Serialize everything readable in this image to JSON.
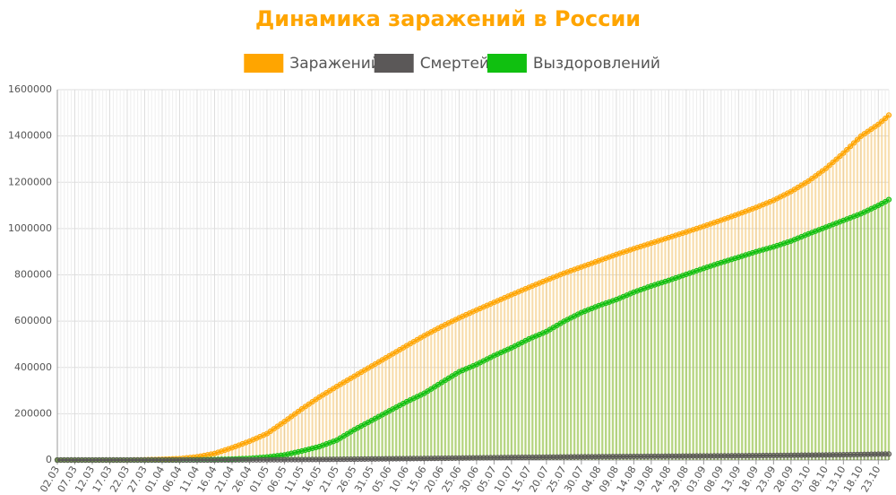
{
  "chart_data": {
    "type": "line",
    "title": "Динамика заражений в России",
    "categories": [
      "02.03",
      null,
      null,
      null,
      null,
      "07.03",
      null,
      null,
      null,
      null,
      "12.03",
      null,
      null,
      null,
      null,
      "17.03",
      null,
      null,
      null,
      null,
      "22.03",
      null,
      null,
      null,
      null,
      "27.03",
      null,
      null,
      null,
      null,
      "01.04",
      null,
      null,
      null,
      null,
      "06.04",
      null,
      null,
      null,
      null,
      "11.04",
      null,
      null,
      null,
      null,
      "16.04",
      null,
      null,
      null,
      null,
      "21.04",
      null,
      null,
      null,
      null,
      "26.04",
      null,
      null,
      null,
      null,
      "01.05",
      null,
      null,
      null,
      null,
      "06.05",
      null,
      null,
      null,
      null,
      "11.05",
      null,
      null,
      null,
      null,
      "16.05",
      null,
      null,
      null,
      null,
      "21.05",
      null,
      null,
      null,
      null,
      "26.05",
      null,
      null,
      null,
      null,
      "31.05",
      null,
      null,
      null,
      null,
      "05.06",
      null,
      null,
      null,
      null,
      "10.06",
      null,
      null,
      null,
      null,
      "15.06",
      null,
      null,
      null,
      null,
      "20.06",
      null,
      null,
      null,
      null,
      "25.06",
      null,
      null,
      null,
      null,
      "30.06",
      null,
      null,
      null,
      null,
      "05.07",
      null,
      null,
      null,
      null,
      "10.07",
      null,
      null,
      null,
      null,
      "15.07",
      null,
      null,
      null,
      null,
      "20.07",
      null,
      null,
      null,
      null,
      "25.07",
      null,
      null,
      null,
      null,
      "30.07",
      null,
      null,
      null,
      null,
      "04.08",
      null,
      null,
      null,
      null,
      "09.08",
      null,
      null,
      null,
      null,
      "14.08",
      null,
      null,
      null,
      null,
      "19.08",
      null,
      null,
      null,
      null,
      "24.08",
      null,
      null,
      null,
      null,
      "29.08",
      null,
      null,
      null,
      null,
      "03.09",
      null,
      null,
      null,
      null,
      "08.09",
      null,
      null,
      null,
      null,
      "13.09",
      null,
      null,
      null,
      null,
      "18.09",
      null,
      null,
      null,
      null,
      "23.09",
      null,
      null,
      null,
      null,
      "28.09",
      null,
      null,
      null,
      null,
      "03.10",
      null,
      null,
      null,
      null,
      "08.10",
      null,
      null,
      null,
      null,
      "13.10",
      null,
      null,
      null,
      null,
      "18.10",
      null,
      null,
      null,
      null,
      "23.10",
      null,
      null,
      null
    ],
    "series": [
      {
        "name": "Заражений",
        "color": "#ffa500",
        "values": [
          0,
          0,
          0,
          0,
          0,
          0,
          0,
          0,
          0,
          0,
          0,
          0,
          0,
          0,
          0,
          0,
          0,
          0,
          0,
          0,
          0,
          200,
          400,
          600,
          800,
          1000,
          1400,
          1800,
          2200,
          2600,
          3000,
          3600,
          4200,
          4800,
          5400,
          6000,
          7600,
          9200,
          10800,
          12400,
          14000,
          16800,
          19600,
          22400,
          25200,
          28000,
          33000,
          38000,
          43000,
          48000,
          53000,
          58600,
          64200,
          69800,
          75400,
          81000,
          87600,
          94200,
          100800,
          107400,
          114000,
          124400,
          134800,
          145200,
          155600,
          166000,
          177000,
          188000,
          199000,
          210000,
          221000,
          231200,
          241400,
          251600,
          261800,
          272000,
          281200,
          290400,
          299600,
          308800,
          318000,
          326800,
          335600,
          344400,
          353200,
          362000,
          370800,
          379600,
          388400,
          397200,
          406000,
          414800,
          423600,
          432400,
          441200,
          450000,
          458800,
          467600,
          476400,
          485200,
          494000,
          502600,
          511200,
          519800,
          528400,
          537000,
          545000,
          553000,
          561000,
          569000,
          577000,
          584400,
          591800,
          599200,
          606600,
          614000,
          620800,
          627600,
          634400,
          641200,
          648000,
          654600,
          661200,
          667800,
          674400,
          681000,
          687600,
          694200,
          700800,
          707400,
          714000,
          720400,
          726800,
          733200,
          739600,
          746000,
          752200,
          758400,
          764600,
          770800,
          777000,
          783000,
          789000,
          795000,
          801000,
          807000,
          812400,
          817800,
          823200,
          828600,
          834000,
          839400,
          844800,
          850200,
          855600,
          861000,
          866400,
          871800,
          877200,
          882600,
          888000,
          893000,
          898000,
          903000,
          908000,
          913000,
          917800,
          922600,
          927400,
          932200,
          937000,
          941800,
          946600,
          951400,
          956200,
          961000,
          965800,
          970600,
          975400,
          980200,
          985000,
          990000,
          995000,
          1000000,
          1005000,
          1010000,
          1015200,
          1020400,
          1025600,
          1030800,
          1036000,
          1041400,
          1046800,
          1052200,
          1057600,
          1063000,
          1068600,
          1074200,
          1079800,
          1085400,
          1091000,
          1097200,
          1103400,
          1109600,
          1115800,
          1122000,
          1129600,
          1137200,
          1144800,
          1152400,
          1160000,
          1169000,
          1178000,
          1187000,
          1196000,
          1205000,
          1216000,
          1227000,
          1238000,
          1249000,
          1260000,
          1273200,
          1286400,
          1299600,
          1312800,
          1326000,
          1340600,
          1355200,
          1369800,
          1384400,
          1399000,
          1409200,
          1419400,
          1429600,
          1439800,
          1450000,
          1463000,
          1476000,
          1490000
        ]
      },
      {
        "name": "Смертей",
        "color": "#5b5858",
        "values": [
          0,
          0,
          0,
          0,
          0,
          0,
          0,
          0,
          0,
          0,
          0,
          0,
          0,
          0,
          0,
          0,
          0,
          0,
          0,
          0,
          0,
          0,
          0,
          0,
          0,
          0,
          0,
          0,
          0,
          0,
          0,
          0,
          0,
          0,
          0,
          0,
          0,
          0,
          0,
          0,
          0,
          0,
          0,
          0,
          0,
          0,
          100,
          200,
          300,
          400,
          500,
          540,
          580,
          620,
          660,
          700,
          780,
          860,
          940,
          1020,
          1100,
          1180,
          1260,
          1340,
          1420,
          1500,
          1600,
          1700,
          1800,
          1900,
          2000,
          2100,
          2200,
          2300,
          2400,
          2500,
          2620,
          2740,
          2860,
          2980,
          3100,
          3240,
          3380,
          3520,
          3660,
          3800,
          3980,
          4160,
          4340,
          4520,
          4700,
          4860,
          5020,
          5180,
          5340,
          5500,
          5620,
          5740,
          5860,
          5980,
          6100,
          6220,
          6340,
          6460,
          6580,
          6700,
          6860,
          7020,
          7180,
          7340,
          7500,
          7700,
          7900,
          8100,
          8300,
          8500,
          8700,
          8900,
          9100,
          9300,
          9500,
          9640,
          9780,
          9920,
          10060,
          10200,
          10360,
          10520,
          10680,
          10840,
          11000,
          11160,
          11320,
          11480,
          11640,
          11800,
          11940,
          12080,
          12220,
          12360,
          12500,
          12640,
          12780,
          12920,
          13060,
          13200,
          13340,
          13480,
          13620,
          13760,
          13900,
          14020,
          14140,
          14260,
          14380,
          14500,
          14600,
          14700,
          14800,
          14900,
          15000,
          15100,
          15200,
          15300,
          15400,
          15500,
          15600,
          15700,
          15800,
          15900,
          16000,
          16100,
          16200,
          16300,
          16400,
          16500,
          16600,
          16700,
          16800,
          16900,
          17000,
          17100,
          17200,
          17300,
          17400,
          17500,
          17600,
          17700,
          17800,
          17900,
          18000,
          18100,
          18200,
          18300,
          18400,
          18500,
          18620,
          18740,
          18860,
          18980,
          19100,
          19220,
          19340,
          19460,
          19580,
          19700,
          19820,
          19940,
          20060,
          20180,
          20300,
          20440,
          20580,
          20720,
          20860,
          21000,
          21160,
          21320,
          21480,
          21640,
          21800,
          21980,
          22160,
          22340,
          22520,
          22700,
          22960,
          23220,
          23480,
          23740,
          24000,
          24240,
          24480,
          24720,
          24960,
          25200,
          25470,
          25730,
          26000
        ]
      },
      {
        "name": "Выздоровлений",
        "color": "#10c010",
        "values": [
          0,
          0,
          0,
          0,
          0,
          0,
          0,
          0,
          0,
          0,
          0,
          0,
          0,
          0,
          0,
          0,
          0,
          0,
          0,
          0,
          0,
          0,
          0,
          0,
          0,
          0,
          0,
          0,
          0,
          0,
          0,
          0,
          0,
          0,
          0,
          0,
          200,
          400,
          600,
          800,
          1000,
          1200,
          1400,
          1600,
          1800,
          2000,
          2400,
          2800,
          3200,
          3600,
          4000,
          4600,
          5200,
          5800,
          6400,
          7000,
          8200,
          9400,
          10600,
          11800,
          13000,
          14800,
          16600,
          18400,
          20200,
          22000,
          25400,
          28800,
          32200,
          35600,
          39000,
          42800,
          46600,
          50400,
          54200,
          58000,
          63600,
          69200,
          74800,
          80400,
          86000,
          95000,
          104000,
          113000,
          122000,
          131000,
          139000,
          147000,
          155000,
          163000,
          171000,
          179200,
          187400,
          195600,
          203800,
          212000,
          220000,
          228000,
          236000,
          244000,
          252000,
          259200,
          266400,
          273600,
          280800,
          288000,
          297400,
          306800,
          316200,
          325600,
          335000,
          344200,
          353400,
          362600,
          371800,
          381000,
          387400,
          393800,
          400200,
          406600,
          413000,
          420600,
          428200,
          435800,
          443400,
          451000,
          457800,
          464600,
          471400,
          478200,
          485000,
          492600,
          500200,
          507800,
          515400,
          523000,
          529400,
          535800,
          542200,
          548600,
          555000,
          563800,
          572600,
          581400,
          590200,
          599000,
          606600,
          614200,
          621800,
          629400,
          637000,
          643000,
          649000,
          655000,
          661000,
          667000,
          672200,
          677400,
          682600,
          687800,
          693000,
          699400,
          705800,
          712200,
          718600,
          725000,
          730400,
          735800,
          741200,
          746600,
          752000,
          756800,
          761600,
          766400,
          771200,
          776000,
          781200,
          786400,
          791600,
          796800,
          802000,
          807200,
          812400,
          817600,
          822800,
          828000,
          833000,
          838000,
          843000,
          848000,
          853000,
          857600,
          862200,
          866800,
          871400,
          876000,
          880800,
          885600,
          890400,
          895200,
          900000,
          904200,
          908400,
          912600,
          916800,
          921000,
          926000,
          931000,
          936000,
          941000,
          946000,
          952200,
          958400,
          964600,
          970800,
          977000,
          982800,
          988600,
          994400,
          1000200,
          1006000,
          1011800,
          1017600,
          1023400,
          1029200,
          1035000,
          1040800,
          1046600,
          1052400,
          1058200,
          1064000,
          1071200,
          1078400,
          1085600,
          1092800,
          1100000,
          1108000,
          1116000,
          1125000
        ]
      }
    ],
    "ylim": [
      0,
      1600000
    ],
    "yticks": [
      0,
      200000,
      400000,
      600000,
      800000,
      1000000,
      1200000,
      1400000,
      1600000
    ],
    "grid": true,
    "legend": "top"
  }
}
